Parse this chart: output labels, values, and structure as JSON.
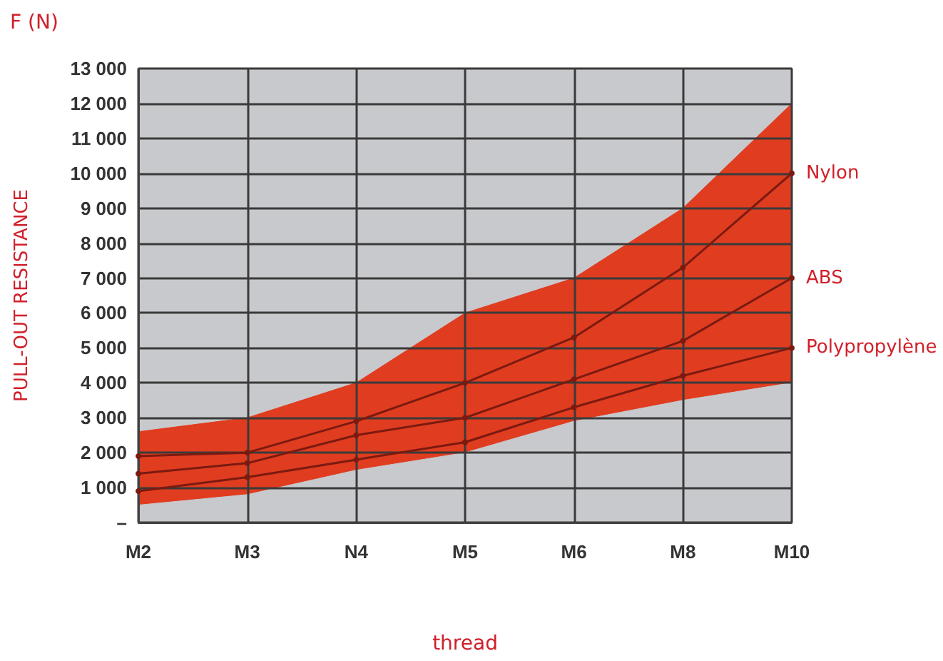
{
  "chart_data": {
    "type": "line",
    "title": "F (N)",
    "ylabel": "PULL-OUT RESISTANCE",
    "xlabel": "thread",
    "categories": [
      "M2",
      "M3",
      "N4",
      "M5",
      "M6",
      "M8",
      "M10"
    ],
    "series": [
      {
        "type": "area",
        "color": "#e03c1f",
        "marker": "none",
        "values": [
          2600,
          3000,
          4000,
          6000,
          7000,
          9000,
          12000
        ]
      },
      {
        "type": "area",
        "color": "#c8c9cd",
        "marker": "none",
        "values": [
          500,
          800,
          1500,
          2000,
          2900,
          3500,
          4000
        ]
      },
      {
        "name": "Nylon",
        "color": "#7a1a10",
        "values": [
          1900,
          2000,
          2900,
          4000,
          5300,
          7300,
          10000
        ]
      },
      {
        "name": "ABS",
        "color": "#7a1a10",
        "values": [
          1400,
          1700,
          2500,
          3000,
          4100,
          5200,
          7000
        ]
      },
      {
        "name": "Polypropylène",
        "color": "#7a1a10",
        "values": [
          900,
          1300,
          1800,
          2300,
          3300,
          4200,
          5000
        ]
      }
    ],
    "ylim": [
      0,
      13000
    ],
    "yticks": [
      {
        "value": 0,
        "label": "–"
      },
      {
        "value": 1000,
        "label": "1 000"
      },
      {
        "value": 2000,
        "label": "2 000"
      },
      {
        "value": 3000,
        "label": "3 000"
      },
      {
        "value": 4000,
        "label": "4 000"
      },
      {
        "value": 5000,
        "label": "5 000"
      },
      {
        "value": 6000,
        "label": "6 000"
      },
      {
        "value": 7000,
        "label": "7 000"
      },
      {
        "value": 8000,
        "label": "8 000"
      },
      {
        "value": 9000,
        "label": "9 000"
      },
      {
        "value": 10000,
        "label": "10 000"
      },
      {
        "value": 11000,
        "label": "11 000"
      },
      {
        "value": 12000,
        "label": "12 000"
      },
      {
        "value": 13000,
        "label": "13 000"
      }
    ],
    "grid": true,
    "legend": false,
    "marker": "circle",
    "line_style": "solid"
  }
}
